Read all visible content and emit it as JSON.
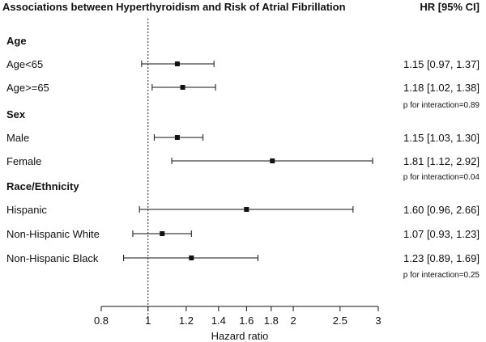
{
  "chart_data": {
    "type": "forest",
    "title": "Associations between Hyperthyroidism and Risk of Atrial Fibrillation",
    "column_header": "HR [95% CI]",
    "xlabel": "Hazard ratio",
    "x_scale": "log",
    "xlim": [
      0.8,
      3
    ],
    "x_ticks": [
      0.8,
      1,
      1.2,
      1.4,
      1.6,
      1.8,
      2,
      2.5,
      3
    ],
    "x_tick_labels": [
      "0.8",
      "1",
      "1.2",
      "1.4",
      "1.6",
      "1.8",
      "2",
      "2.5",
      "3"
    ],
    "reference_line": 1,
    "groups": [
      {
        "name": "Age",
        "rows": [
          {
            "label": "Age<65",
            "hr": 1.15,
            "lower": 0.97,
            "upper": 1.37,
            "text": "1.15 [0.97, 1.37]"
          },
          {
            "label": "Age>=65",
            "hr": 1.18,
            "lower": 1.02,
            "upper": 1.38,
            "text": "1.18 [1.02, 1.38]"
          }
        ],
        "interaction": "p for interaction=0.89"
      },
      {
        "name": "Sex",
        "rows": [
          {
            "label": "Male",
            "hr": 1.15,
            "lower": 1.03,
            "upper": 1.3,
            "text": "1.15 [1.03, 1.30]"
          },
          {
            "label": "Female",
            "hr": 1.81,
            "lower": 1.12,
            "upper": 2.92,
            "text": "1.81 [1.12, 2.92]"
          }
        ],
        "interaction": "p for interaction=0.04"
      },
      {
        "name": "Race/Ethnicity",
        "rows": [
          {
            "label": "Hispanic",
            "hr": 1.6,
            "lower": 0.96,
            "upper": 2.66,
            "text": "1.60 [0.96, 2.66]"
          },
          {
            "label": "Non-Hispanic White",
            "hr": 1.07,
            "lower": 0.93,
            "upper": 1.23,
            "text": "1.07 [0.93, 1.23]"
          },
          {
            "label": "Non-Hispanic Black",
            "hr": 1.23,
            "lower": 0.89,
            "upper": 1.69,
            "text": "1.23 [0.89, 1.69]"
          }
        ],
        "interaction": "p for interaction=0.25"
      }
    ]
  }
}
